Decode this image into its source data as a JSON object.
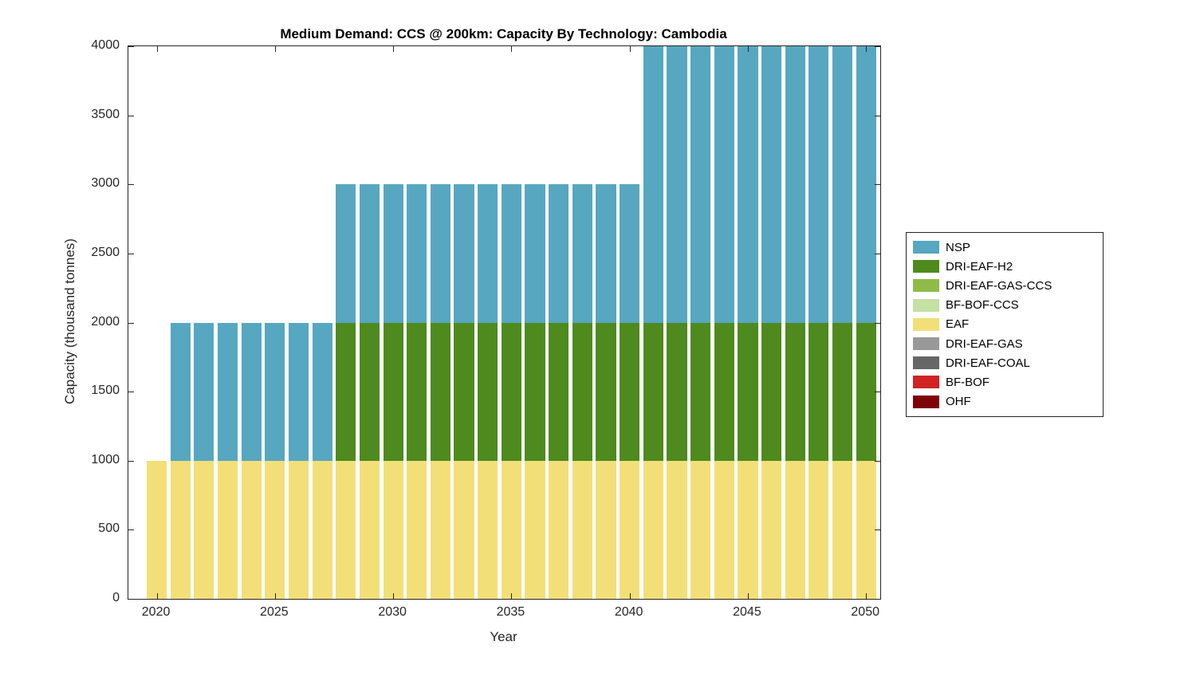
{
  "chart_data": {
    "type": "bar",
    "stacked": true,
    "title": "Medium Demand: CCS @ 200km: Capacity By Technology: Cambodia",
    "xlabel": "Year",
    "ylabel": "Capacity (thousand tonnes)",
    "ylim": [
      0,
      4000
    ],
    "yticks": [
      0,
      500,
      1000,
      1500,
      2000,
      2500,
      3000,
      3500,
      4000
    ],
    "xticks": [
      2020,
      2025,
      2030,
      2035,
      2040,
      2045,
      2050
    ],
    "xlim": [
      2018.8,
      2050.6
    ],
    "bar_width": 0.85,
    "grid": false,
    "legend_position": "right",
    "x": [
      2020,
      2021,
      2022,
      2023,
      2024,
      2025,
      2026,
      2027,
      2028,
      2029,
      2030,
      2031,
      2032,
      2033,
      2034,
      2035,
      2036,
      2037,
      2038,
      2039,
      2040,
      2041,
      2042,
      2043,
      2044,
      2045,
      2046,
      2047,
      2048,
      2049,
      2050
    ],
    "series": [
      {
        "name": "NSP",
        "color": "#57A7C0",
        "values": [
          0,
          1000,
          1000,
          1000,
          1000,
          1000,
          1000,
          1000,
          1000,
          1000,
          1000,
          1000,
          1000,
          1000,
          1000,
          1000,
          1000,
          1000,
          1000,
          1000,
          1000,
          2000,
          2000,
          2000,
          2000,
          2000,
          2000,
          2000,
          2000,
          2000,
          2000
        ]
      },
      {
        "name": "DRI-EAF-H2",
        "color": "#4E8A1E",
        "values": [
          0,
          0,
          0,
          0,
          0,
          0,
          0,
          0,
          1000,
          1000,
          1000,
          1000,
          1000,
          1000,
          1000,
          1000,
          1000,
          1000,
          1000,
          1000,
          1000,
          1000,
          1000,
          1000,
          1000,
          1000,
          1000,
          1000,
          1000,
          1000,
          1000
        ]
      },
      {
        "name": "DRI-EAF-GAS-CCS",
        "color": "#8FBC48",
        "values": [
          0,
          0,
          0,
          0,
          0,
          0,
          0,
          0,
          0,
          0,
          0,
          0,
          0,
          0,
          0,
          0,
          0,
          0,
          0,
          0,
          0,
          0,
          0,
          0,
          0,
          0,
          0,
          0,
          0,
          0,
          0
        ]
      },
      {
        "name": "BF-BOF-CCS",
        "color": "#C5E0A2",
        "values": [
          0,
          0,
          0,
          0,
          0,
          0,
          0,
          0,
          0,
          0,
          0,
          0,
          0,
          0,
          0,
          0,
          0,
          0,
          0,
          0,
          0,
          0,
          0,
          0,
          0,
          0,
          0,
          0,
          0,
          0,
          0
        ]
      },
      {
        "name": "EAF",
        "color": "#F3DF77",
        "values": [
          1000,
          1000,
          1000,
          1000,
          1000,
          1000,
          1000,
          1000,
          1000,
          1000,
          1000,
          1000,
          1000,
          1000,
          1000,
          1000,
          1000,
          1000,
          1000,
          1000,
          1000,
          1000,
          1000,
          1000,
          1000,
          1000,
          1000,
          1000,
          1000,
          1000,
          1000
        ]
      },
      {
        "name": "DRI-EAF-GAS",
        "color": "#999999",
        "values": [
          0,
          0,
          0,
          0,
          0,
          0,
          0,
          0,
          0,
          0,
          0,
          0,
          0,
          0,
          0,
          0,
          0,
          0,
          0,
          0,
          0,
          0,
          0,
          0,
          0,
          0,
          0,
          0,
          0,
          0,
          0
        ]
      },
      {
        "name": "DRI-EAF-COAL",
        "color": "#666666",
        "values": [
          0,
          0,
          0,
          0,
          0,
          0,
          0,
          0,
          0,
          0,
          0,
          0,
          0,
          0,
          0,
          0,
          0,
          0,
          0,
          0,
          0,
          0,
          0,
          0,
          0,
          0,
          0,
          0,
          0,
          0,
          0
        ]
      },
      {
        "name": "BF-BOF",
        "color": "#CF2423",
        "values": [
          0,
          0,
          0,
          0,
          0,
          0,
          0,
          0,
          0,
          0,
          0,
          0,
          0,
          0,
          0,
          0,
          0,
          0,
          0,
          0,
          0,
          0,
          0,
          0,
          0,
          0,
          0,
          0,
          0,
          0,
          0
        ]
      },
      {
        "name": "OHF",
        "color": "#7E0308",
        "values": [
          0,
          0,
          0,
          0,
          0,
          0,
          0,
          0,
          0,
          0,
          0,
          0,
          0,
          0,
          0,
          0,
          0,
          0,
          0,
          0,
          0,
          0,
          0,
          0,
          0,
          0,
          0,
          0,
          0,
          0,
          0
        ]
      }
    ]
  }
}
